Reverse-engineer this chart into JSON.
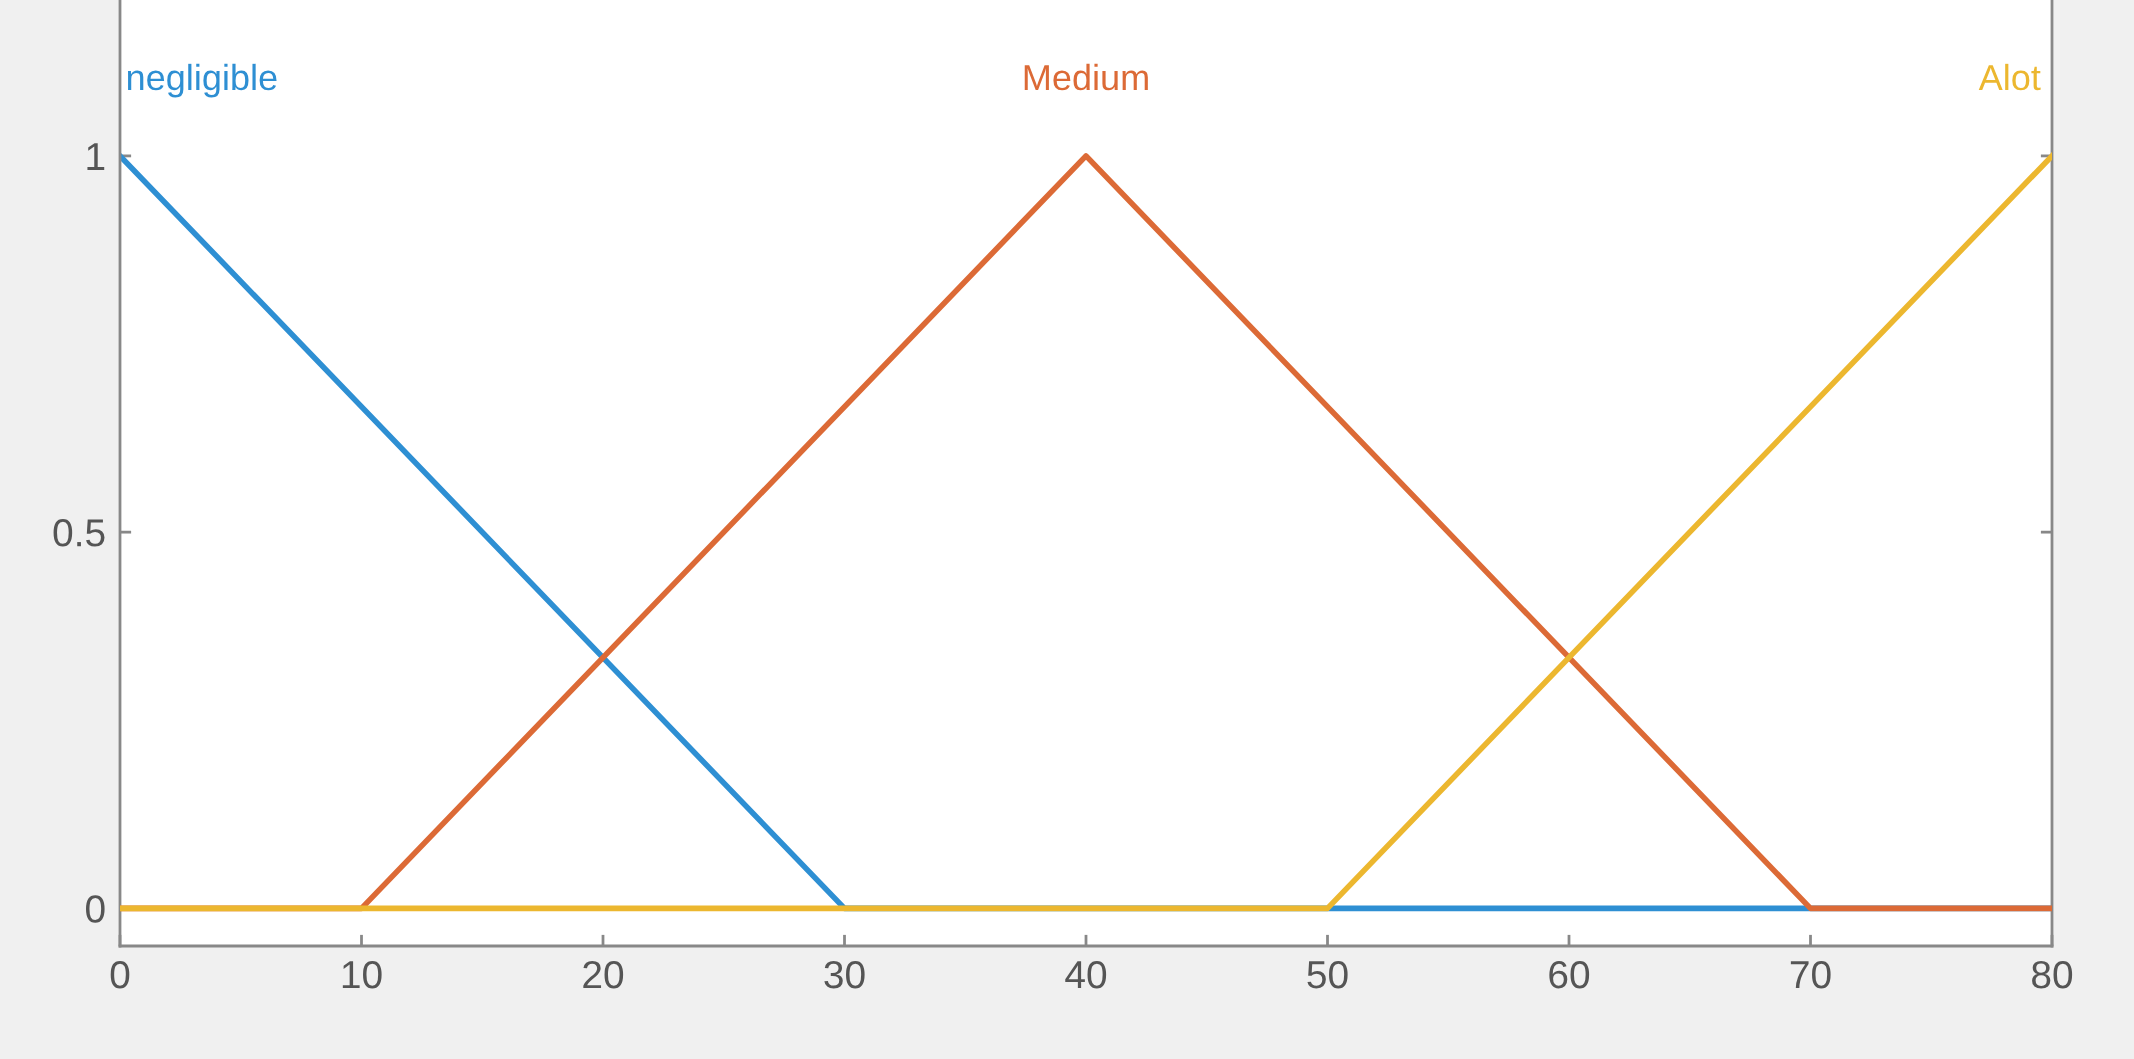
{
  "chart_data": {
    "type": "line",
    "series": [
      {
        "name": "negligible",
        "color": "#2e8fd3",
        "x": [
          0,
          30,
          80
        ],
        "values": [
          1,
          0,
          0
        ]
      },
      {
        "name": "Medium",
        "color": "#dc6a36",
        "x": [
          0,
          10,
          40,
          70,
          80
        ],
        "values": [
          0,
          0,
          1,
          0,
          0
        ]
      },
      {
        "name": "Alot",
        "color": "#ecb72f",
        "x": [
          0,
          50,
          80
        ],
        "values": [
          0,
          0,
          1
        ]
      }
    ],
    "xlim": [
      0,
      80
    ],
    "ylim": [
      -0.05,
      1.21
    ],
    "xticks": [
      0,
      10,
      20,
      30,
      40,
      50,
      60,
      70,
      80
    ],
    "yticks": [
      0,
      0.5,
      1
    ],
    "grid": false,
    "legend": false,
    "marker": "none",
    "line_style": "solid"
  }
}
